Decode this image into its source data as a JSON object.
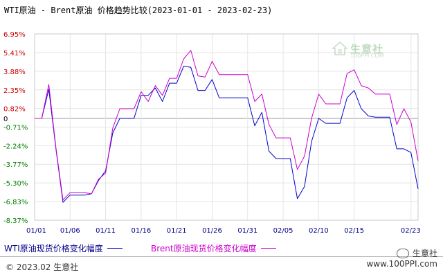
{
  "title": "WTI原油 - Brent原油 价格趋势比较(2023-01-01 - 2023-02-23)",
  "legend": {
    "wti": "WTI原油现货价格变化幅度",
    "brent": "Brent原油现货价格变化幅度"
  },
  "footer": {
    "copyright": "© 2023.02 生意社",
    "wechat_brand": "生意社",
    "site": "www.100PPI.com"
  },
  "watermark": {
    "name": "生意社",
    "site": "100PPI.COM"
  },
  "colors": {
    "wti": "#0000cc",
    "brent": "#cc00cc",
    "positive_label": "#cc0000",
    "negative_label": "#008000",
    "zero_label": "#000000"
  },
  "chart_data": {
    "type": "line",
    "title": "WTI原油 - Brent原油 价格趋势比较(2023-01-01 - 2023-02-23)",
    "xlabel": "",
    "ylabel": "",
    "x_range": [
      "01/01",
      "02/23"
    ],
    "y_ticks": [
      6.95,
      5.41,
      3.88,
      2.35,
      0.82,
      0,
      -0.71,
      -2.24,
      -3.77,
      -5.3,
      -6.83,
      -8.37
    ],
    "y_tick_labels": [
      "6.95%",
      "5.41%",
      "3.88%",
      "2.35%",
      "0.82%",
      "0",
      "-0.71%",
      "-2.24%",
      "-3.77%",
      "-5.30%",
      "-6.83%",
      "-8.37%"
    ],
    "ylim": [
      -8.37,
      6.95
    ],
    "x_tick_labels": [
      "01/01",
      "01/06",
      "01/11",
      "01/16",
      "01/21",
      "01/26",
      "01/31",
      "02/05",
      "02/10",
      "02/15",
      "02/23"
    ],
    "x_tick_days": [
      1,
      6,
      11,
      16,
      21,
      26,
      31,
      36,
      41,
      46,
      54
    ],
    "grid": true,
    "legend_position": "bottom",
    "series": [
      {
        "name": "WTI原油现货价格变化幅度",
        "color": "#0000cc",
        "points": [
          [
            1,
            0
          ],
          [
            2,
            0
          ],
          [
            3,
            2.4
          ],
          [
            4,
            -2.5
          ],
          [
            5,
            -6.9
          ],
          [
            6,
            -6.3
          ],
          [
            7,
            -6.3
          ],
          [
            8,
            -6.3
          ],
          [
            9,
            -6.2
          ],
          [
            10,
            -5.1
          ],
          [
            11,
            -4.3
          ],
          [
            12,
            -1.2
          ],
          [
            13,
            0
          ],
          [
            14,
            0
          ],
          [
            15,
            0
          ],
          [
            16,
            1.9
          ],
          [
            17,
            1.9
          ],
          [
            18,
            2.5
          ],
          [
            19,
            1.4
          ],
          [
            20,
            2.9
          ],
          [
            21,
            2.9
          ],
          [
            22,
            4.3
          ],
          [
            23,
            4.2
          ],
          [
            24,
            2.3
          ],
          [
            25,
            2.3
          ],
          [
            26,
            3.2
          ],
          [
            27,
            1.7
          ],
          [
            28,
            1.7
          ],
          [
            29,
            1.7
          ],
          [
            30,
            1.7
          ],
          [
            31,
            1.7
          ],
          [
            32,
            -0.6
          ],
          [
            33,
            0.5
          ],
          [
            34,
            -2.7
          ],
          [
            35,
            -3.3
          ],
          [
            36,
            -3.3
          ],
          [
            37,
            -3.3
          ],
          [
            38,
            -6.6
          ],
          [
            39,
            -5.6
          ],
          [
            40,
            -1.9
          ],
          [
            41,
            0
          ],
          [
            42,
            -0.4
          ],
          [
            43,
            -0.4
          ],
          [
            44,
            -0.4
          ],
          [
            45,
            1.7
          ],
          [
            46,
            2.3
          ],
          [
            47,
            0.8
          ],
          [
            48,
            0.2
          ],
          [
            49,
            0.1
          ],
          [
            50,
            0.1
          ],
          [
            51,
            0.1
          ],
          [
            52,
            -2.5
          ],
          [
            53,
            -2.5
          ],
          [
            54,
            -2.8
          ],
          [
            55,
            -5.8
          ]
        ]
      },
      {
        "name": "Brent原油现货价格变化幅度",
        "color": "#cc00cc",
        "points": [
          [
            1,
            0
          ],
          [
            2,
            0
          ],
          [
            3,
            2.8
          ],
          [
            4,
            -2.4
          ],
          [
            5,
            -6.7
          ],
          [
            6,
            -6.1
          ],
          [
            7,
            -6.1
          ],
          [
            8,
            -6.1
          ],
          [
            9,
            -6.2
          ],
          [
            10,
            -5.0
          ],
          [
            11,
            -4.5
          ],
          [
            12,
            -0.8
          ],
          [
            13,
            0.8
          ],
          [
            14,
            0.8
          ],
          [
            15,
            0.8
          ],
          [
            16,
            2.2
          ],
          [
            17,
            1.4
          ],
          [
            18,
            2.7
          ],
          [
            19,
            1.9
          ],
          [
            20,
            3.3
          ],
          [
            21,
            3.3
          ],
          [
            22,
            4.9
          ],
          [
            23,
            5.6
          ],
          [
            24,
            3.5
          ],
          [
            25,
            3.4
          ],
          [
            26,
            4.7
          ],
          [
            27,
            3.6
          ],
          [
            28,
            3.6
          ],
          [
            29,
            3.6
          ],
          [
            30,
            3.6
          ],
          [
            31,
            3.6
          ],
          [
            32,
            1.4
          ],
          [
            33,
            2.0
          ],
          [
            34,
            -0.5
          ],
          [
            35,
            -1.6
          ],
          [
            36,
            -1.6
          ],
          [
            37,
            -1.6
          ],
          [
            38,
            -4.2
          ],
          [
            39,
            -3.1
          ],
          [
            40,
            0
          ],
          [
            41,
            2.0
          ],
          [
            42,
            1.2
          ],
          [
            43,
            1.2
          ],
          [
            44,
            1.2
          ],
          [
            45,
            3.7
          ],
          [
            46,
            4.0
          ],
          [
            47,
            2.7
          ],
          [
            48,
            2.5
          ],
          [
            49,
            2.0
          ],
          [
            50,
            2.0
          ],
          [
            51,
            2.0
          ],
          [
            52,
            -0.5
          ],
          [
            53,
            0.8
          ],
          [
            54,
            -0.3
          ],
          [
            55,
            -3.5
          ]
        ]
      }
    ]
  }
}
